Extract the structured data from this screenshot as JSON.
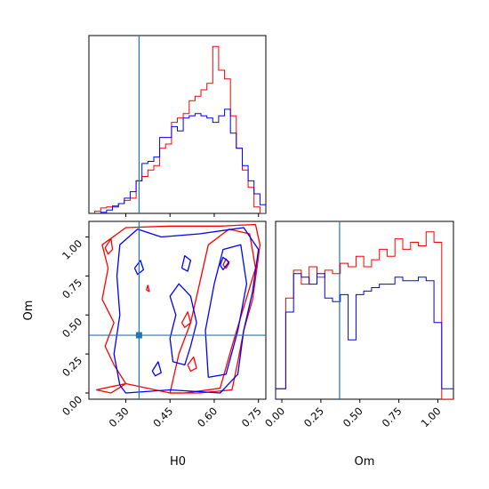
{
  "chart_data": {
    "type": "corner",
    "parameters": [
      "H0",
      "Om"
    ],
    "colors": {
      "series_a": "#ff0000",
      "series_b": "#0000ff",
      "truth": "#1f77b4"
    },
    "truth": {
      "H0": 0.345,
      "Om": 0.37
    },
    "panels": {
      "H0_hist": {
        "xlim": [
          0.175,
          0.775
        ],
        "bin_edges": [
          0.195,
          0.215,
          0.235,
          0.255,
          0.275,
          0.295,
          0.315,
          0.335,
          0.355,
          0.375,
          0.395,
          0.415,
          0.435,
          0.455,
          0.475,
          0.495,
          0.515,
          0.535,
          0.555,
          0.575,
          0.595,
          0.615,
          0.635,
          0.655,
          0.675,
          0.695,
          0.715,
          0.735,
          0.755,
          0.775
        ],
        "series": [
          {
            "name": "",
            "color": "#ff0000",
            "values": [
              0.1,
              0.25,
              0.3,
              0.35,
              0.45,
              0.6,
              0.7,
              1.5,
              1.7,
              2.0,
              2.2,
              3.0,
              3.2,
              4.2,
              4.4,
              4.6,
              5.2,
              5.4,
              5.7,
              6.0,
              7.7,
              6.6,
              6.2,
              4.5,
              3.0,
              2.0,
              1.2,
              0.3,
              0
            ]
          },
          {
            "name": "",
            "color": "#0000ff",
            "values": [
              0,
              0.05,
              0.15,
              0.3,
              0.45,
              0.7,
              1.0,
              1.5,
              2.3,
              2.4,
              2.6,
              3.5,
              3.5,
              4.0,
              3.8,
              4.4,
              4.5,
              4.6,
              4.5,
              4.4,
              4.2,
              4.5,
              4.8,
              3.7,
              3.0,
              2.2,
              1.5,
              0.9,
              0.4
            ]
          }
        ]
      },
      "Om_hist": {
        "xlim": [
          -0.04,
          1.1
        ],
        "bin_edges": [
          -0.04,
          0.025,
          0.075,
          0.125,
          0.175,
          0.225,
          0.275,
          0.325,
          0.375,
          0.425,
          0.475,
          0.525,
          0.575,
          0.625,
          0.675,
          0.725,
          0.775,
          0.825,
          0.875,
          0.925,
          0.975,
          1.025,
          1.1
        ],
        "series": [
          {
            "name": "",
            "color": "#ff0000",
            "values": [
              0.3,
              2.9,
              3.7,
              3.3,
              3.8,
              3.5,
              3.7,
              3.6,
              3.9,
              3.8,
              4.1,
              3.8,
              4.0,
              4.3,
              4.1,
              4.6,
              4.3,
              4.5,
              4.4,
              4.8,
              4.5,
              0
            ]
          },
          {
            "name": "",
            "color": "#0000ff",
            "values": [
              0.3,
              2.5,
              3.6,
              3.5,
              3.3,
              3.6,
              2.9,
              2.8,
              3.0,
              1.7,
              3.0,
              3.1,
              3.2,
              3.3,
              3.3,
              3.5,
              3.4,
              3.4,
              3.5,
              3.4,
              2.2,
              0.3
            ]
          }
        ]
      },
      "joint": {
        "xlim": [
          0.175,
          0.775
        ],
        "ylim": [
          -0.04,
          1.1
        ],
        "contours": [
          {
            "color": "#ff0000",
            "points": [
              [
                0.2,
                0.02
              ],
              [
                0.25,
                0.0
              ],
              [
                0.3,
                0.06
              ],
              [
                0.26,
                0.18
              ],
              [
                0.23,
                0.3
              ],
              [
                0.26,
                0.45
              ],
              [
                0.22,
                0.6
              ],
              [
                0.24,
                0.8
              ],
              [
                0.22,
                0.95
              ],
              [
                0.3,
                1.06
              ],
              [
                0.45,
                1.07
              ],
              [
                0.62,
                1.07
              ],
              [
                0.74,
                1.08
              ],
              [
                0.755,
                0.95
              ],
              [
                0.745,
                0.8
              ],
              [
                0.73,
                0.6
              ],
              [
                0.7,
                0.4
              ],
              [
                0.68,
                0.2
              ],
              [
                0.66,
                0.02
              ],
              [
                0.55,
                0.0
              ],
              [
                0.45,
                0.0
              ],
              [
                0.3,
                0.06
              ],
              [
                0.2,
                0.02
              ]
            ]
          },
          {
            "color": "#ff0000",
            "points": [
              [
                0.45,
                0.0
              ],
              [
                0.48,
                0.25
              ],
              [
                0.52,
                0.45
              ],
              [
                0.55,
                0.7
              ],
              [
                0.58,
                0.95
              ],
              [
                0.65,
                1.05
              ],
              [
                0.72,
                1.02
              ],
              [
                0.74,
                0.8
              ],
              [
                0.7,
                0.55
              ],
              [
                0.66,
                0.3
              ],
              [
                0.62,
                0.03
              ],
              [
                0.5,
                0.0
              ],
              [
                0.45,
                0.0
              ]
            ]
          },
          {
            "color": "#ff0000",
            "points": [
              [
                0.63,
                0.82
              ],
              [
                0.64,
                0.86
              ],
              [
                0.65,
                0.83
              ],
              [
                0.64,
                0.8
              ],
              [
                0.63,
                0.82
              ]
            ]
          },
          {
            "color": "#ff0000",
            "points": [
              [
                0.49,
                0.45
              ],
              [
                0.51,
                0.52
              ],
              [
                0.52,
                0.45
              ],
              [
                0.5,
                0.42
              ],
              [
                0.49,
                0.45
              ]
            ]
          },
          {
            "color": "#ff0000",
            "points": [
              [
                0.51,
                0.18
              ],
              [
                0.53,
                0.23
              ],
              [
                0.54,
                0.16
              ],
              [
                0.52,
                0.14
              ],
              [
                0.51,
                0.18
              ]
            ]
          },
          {
            "color": "#ff0000",
            "points": [
              [
                0.23,
                0.93
              ],
              [
                0.25,
                0.99
              ],
              [
                0.255,
                0.92
              ],
              [
                0.24,
                0.89
              ],
              [
                0.23,
                0.93
              ]
            ]
          },
          {
            "color": "#ff0000",
            "points": [
              [
                0.37,
                0.66
              ],
              [
                0.375,
                0.69
              ],
              [
                0.38,
                0.65
              ],
              [
                0.37,
                0.66
              ]
            ]
          },
          {
            "color": "#0000ff",
            "points": [
              [
                0.28,
                0.05
              ],
              [
                0.26,
                0.25
              ],
              [
                0.28,
                0.5
              ],
              [
                0.27,
                0.75
              ],
              [
                0.28,
                0.95
              ],
              [
                0.34,
                1.05
              ],
              [
                0.42,
                1.0
              ],
              [
                0.55,
                1.02
              ],
              [
                0.7,
                1.06
              ],
              [
                0.75,
                0.92
              ],
              [
                0.73,
                0.65
              ],
              [
                0.7,
                0.4
              ],
              [
                0.68,
                0.12
              ],
              [
                0.62,
                0.0
              ],
              [
                0.45,
                0.02
              ],
              [
                0.3,
                0.0
              ],
              [
                0.28,
                0.05
              ]
            ]
          },
          {
            "color": "#0000ff",
            "points": [
              [
                0.58,
                0.1
              ],
              [
                0.57,
                0.4
              ],
              [
                0.6,
                0.7
              ],
              [
                0.63,
                0.92
              ],
              [
                0.69,
                0.95
              ],
              [
                0.71,
                0.7
              ],
              [
                0.68,
                0.4
              ],
              [
                0.64,
                0.12
              ],
              [
                0.58,
                0.1
              ]
            ]
          },
          {
            "color": "#0000ff",
            "points": [
              [
                0.62,
                0.82
              ],
              [
                0.63,
                0.87
              ],
              [
                0.65,
                0.84
              ],
              [
                0.63,
                0.79
              ],
              [
                0.62,
                0.82
              ]
            ]
          },
          {
            "color": "#0000ff",
            "points": [
              [
                0.46,
                0.2
              ],
              [
                0.45,
                0.35
              ],
              [
                0.47,
                0.5
              ],
              [
                0.45,
                0.62
              ],
              [
                0.48,
                0.7
              ],
              [
                0.52,
                0.62
              ],
              [
                0.54,
                0.45
              ],
              [
                0.52,
                0.3
              ],
              [
                0.5,
                0.18
              ],
              [
                0.46,
                0.2
              ]
            ]
          },
          {
            "color": "#0000ff",
            "points": [
              [
                0.49,
                0.8
              ],
              [
                0.5,
                0.88
              ],
              [
                0.52,
                0.85
              ],
              [
                0.51,
                0.78
              ],
              [
                0.49,
                0.8
              ]
            ]
          },
          {
            "color": "#0000ff",
            "points": [
              [
                0.39,
                0.14
              ],
              [
                0.41,
                0.2
              ],
              [
                0.42,
                0.13
              ],
              [
                0.4,
                0.11
              ],
              [
                0.39,
                0.14
              ]
            ]
          },
          {
            "color": "#0000ff",
            "points": [
              [
                0.33,
                0.8
              ],
              [
                0.35,
                0.85
              ],
              [
                0.36,
                0.79
              ],
              [
                0.34,
                0.76
              ],
              [
                0.33,
                0.8
              ]
            ]
          }
        ]
      }
    },
    "axes": {
      "H0": {
        "label": "H0",
        "ticks": [
          0.3,
          0.45,
          0.6,
          0.75
        ],
        "tick_labels": [
          "0.30",
          "0.45",
          "0.60",
          "0.75"
        ]
      },
      "Om": {
        "label": "Om",
        "ticks": [
          0.0,
          0.25,
          0.5,
          0.75,
          1.0
        ],
        "tick_labels": [
          "0.00",
          "0.25",
          "0.50",
          "0.75",
          "1.00"
        ]
      }
    }
  }
}
